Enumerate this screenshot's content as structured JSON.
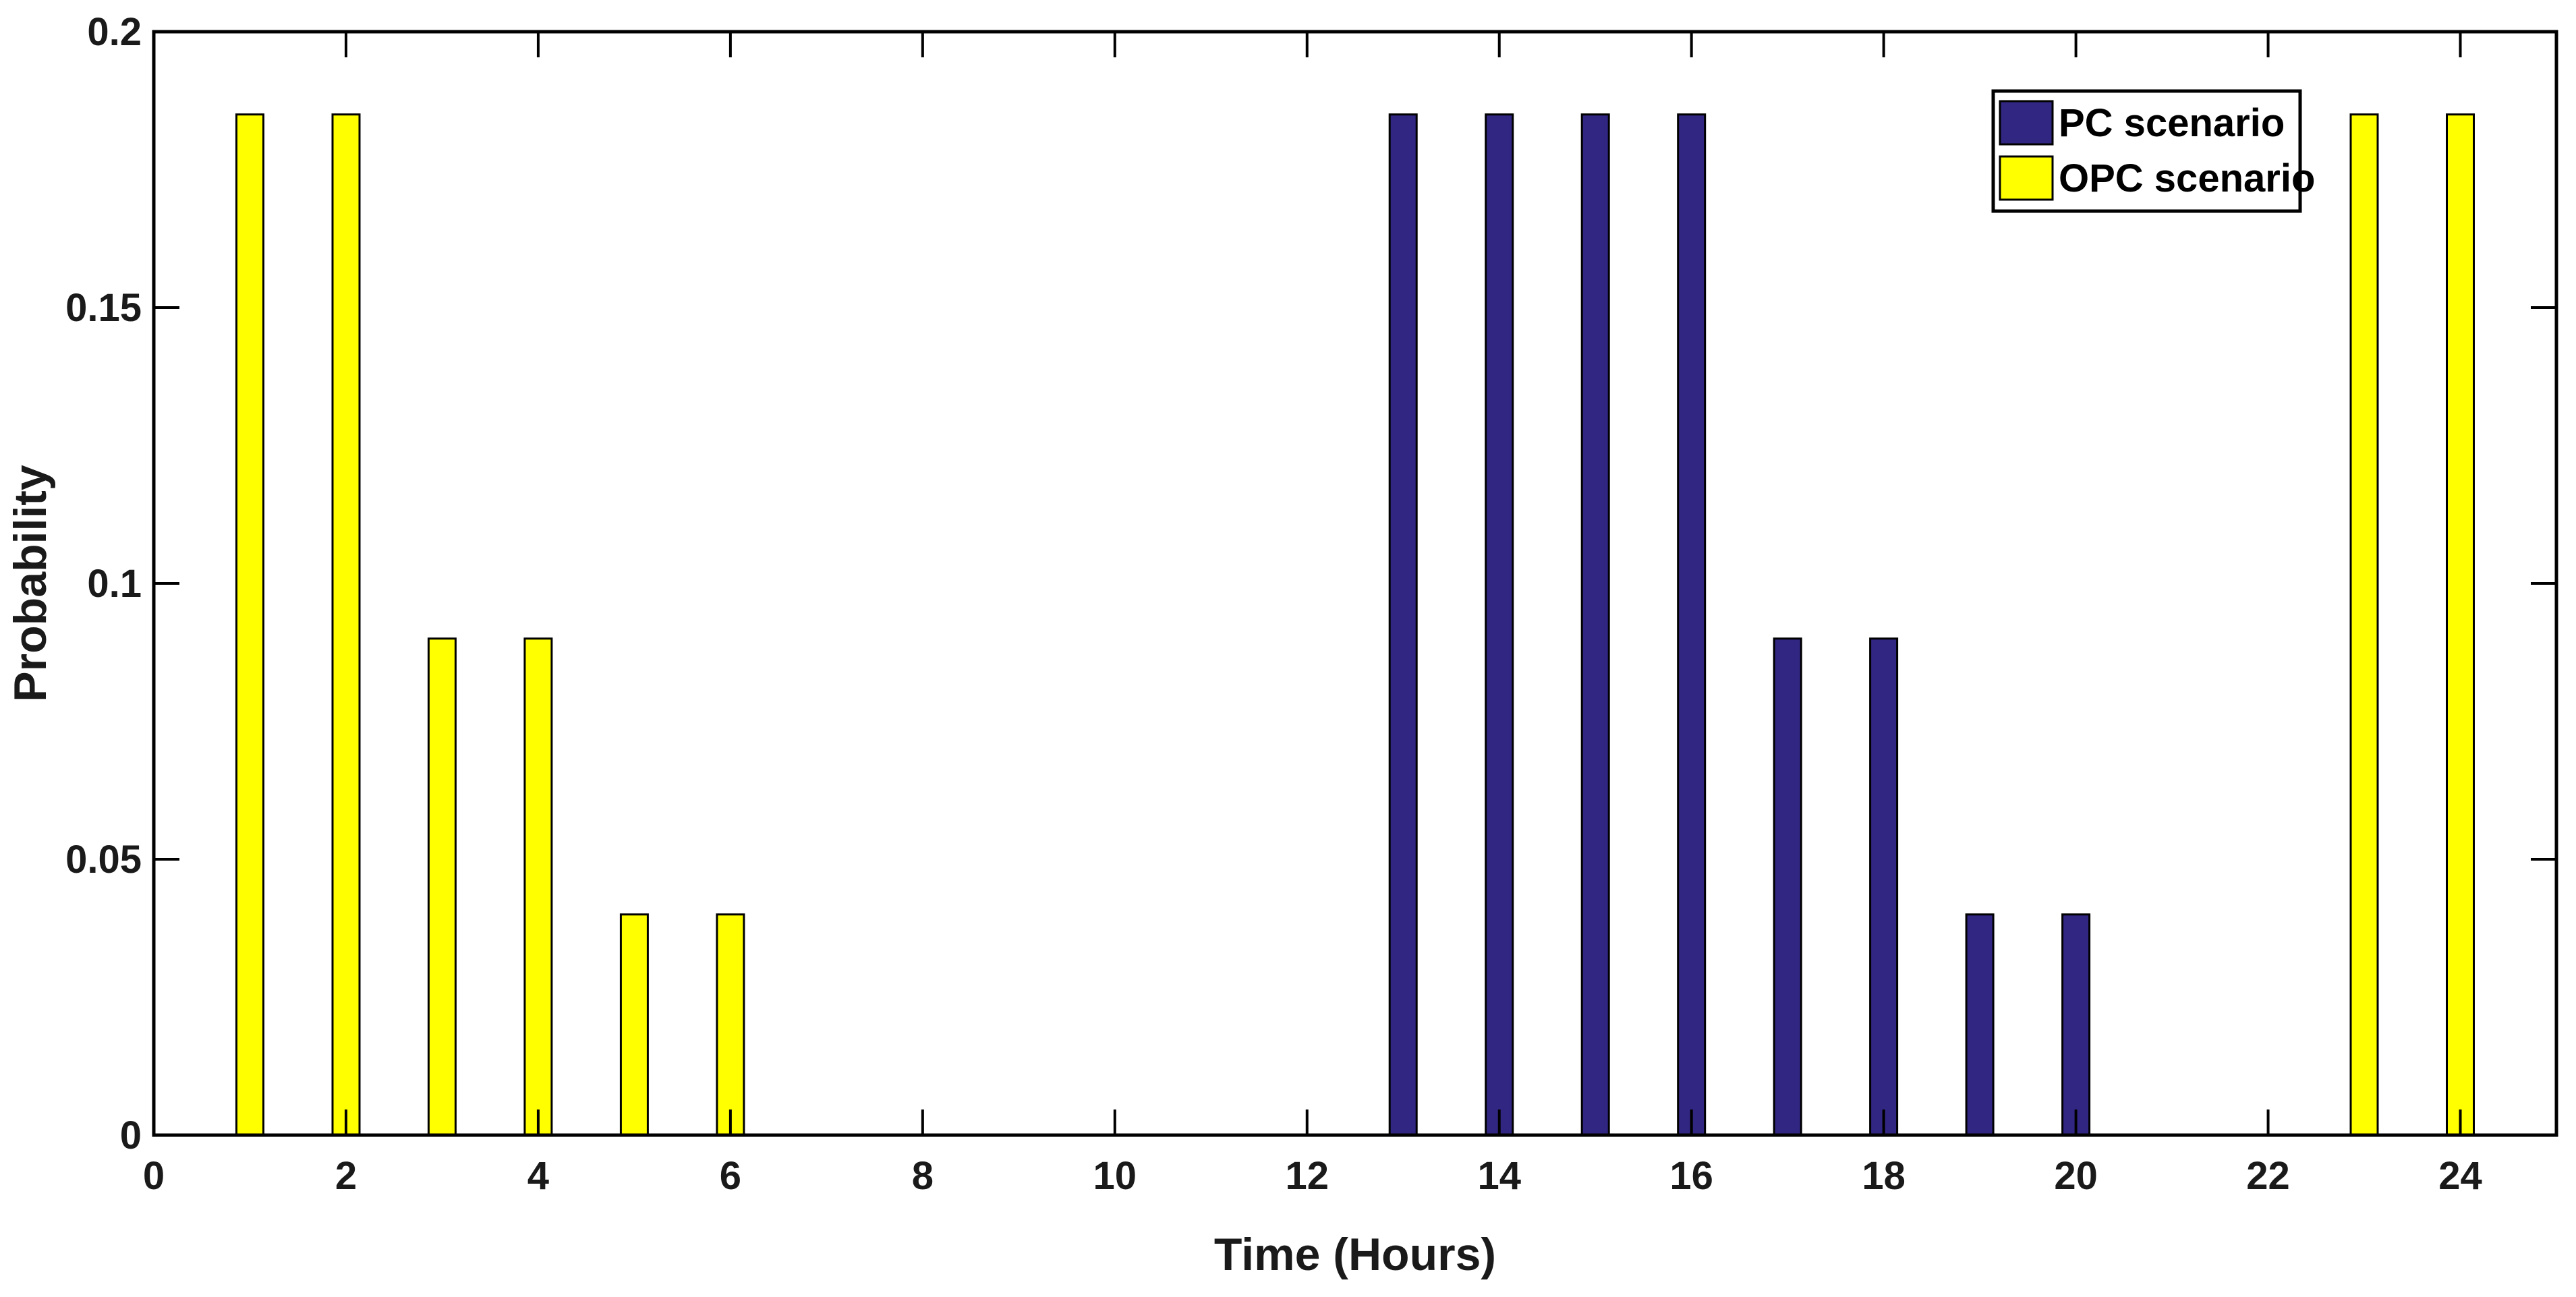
{
  "chart_data": {
    "type": "bar",
    "xlabel": "Time (Hours)",
    "ylabel": "Probability",
    "xlim": [
      0,
      25
    ],
    "ylim": [
      0,
      0.2
    ],
    "x_ticks": [
      "0",
      "2",
      "4",
      "6",
      "8",
      "10",
      "12",
      "14",
      "16",
      "18",
      "20",
      "22",
      "24"
    ],
    "y_ticks": [
      "0",
      "0.05",
      "0.1",
      "0.15",
      "0.2"
    ],
    "grid": false,
    "legend_position": "top-right",
    "series": [
      {
        "name": "PC scenario",
        "color": "#312783",
        "x": [
          13,
          14,
          15,
          16,
          17,
          18,
          19,
          20
        ],
        "values": [
          0.185,
          0.185,
          0.185,
          0.185,
          0.09,
          0.09,
          0.04,
          0.04
        ]
      },
      {
        "name": "OPC scenario",
        "color": "#ffff00",
        "x": [
          1,
          2,
          3,
          4,
          5,
          6,
          23,
          24
        ],
        "values": [
          0.185,
          0.185,
          0.09,
          0.09,
          0.04,
          0.04,
          0.185,
          0.185
        ]
      }
    ]
  }
}
